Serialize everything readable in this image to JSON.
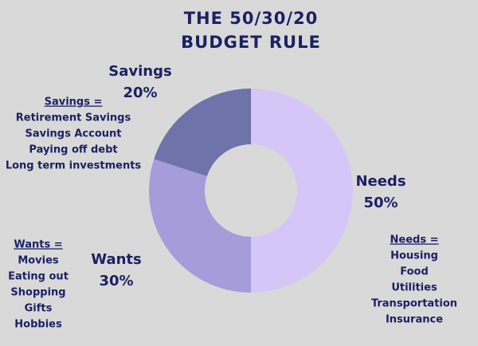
{
  "chart_data": {
    "type": "pie",
    "title": "THE 50/30/20 BUDGET RULE",
    "categories": [
      "Needs",
      "Wants",
      "Savings"
    ],
    "values": [
      50,
      30,
      20
    ],
    "value_labels": [
      "50%",
      "30%",
      "20%"
    ],
    "colors": [
      "#d6c6f8",
      "#a59cd9",
      "#6e73a9"
    ],
    "annotations": [
      {
        "title": "Needs =",
        "items": [
          "Housing",
          "Food",
          "Utilities",
          "Transportation",
          "Insurance"
        ]
      },
      {
        "title": "Wants =",
        "items": [
          "Movies",
          "Eating out",
          "Shopping",
          "Gifts",
          "Hobbies"
        ]
      },
      {
        "title": "Savings =",
        "items": [
          "Retirement Savings",
          "Savings Account",
          "Paying off debt",
          "Long term investments"
        ]
      }
    ]
  }
}
